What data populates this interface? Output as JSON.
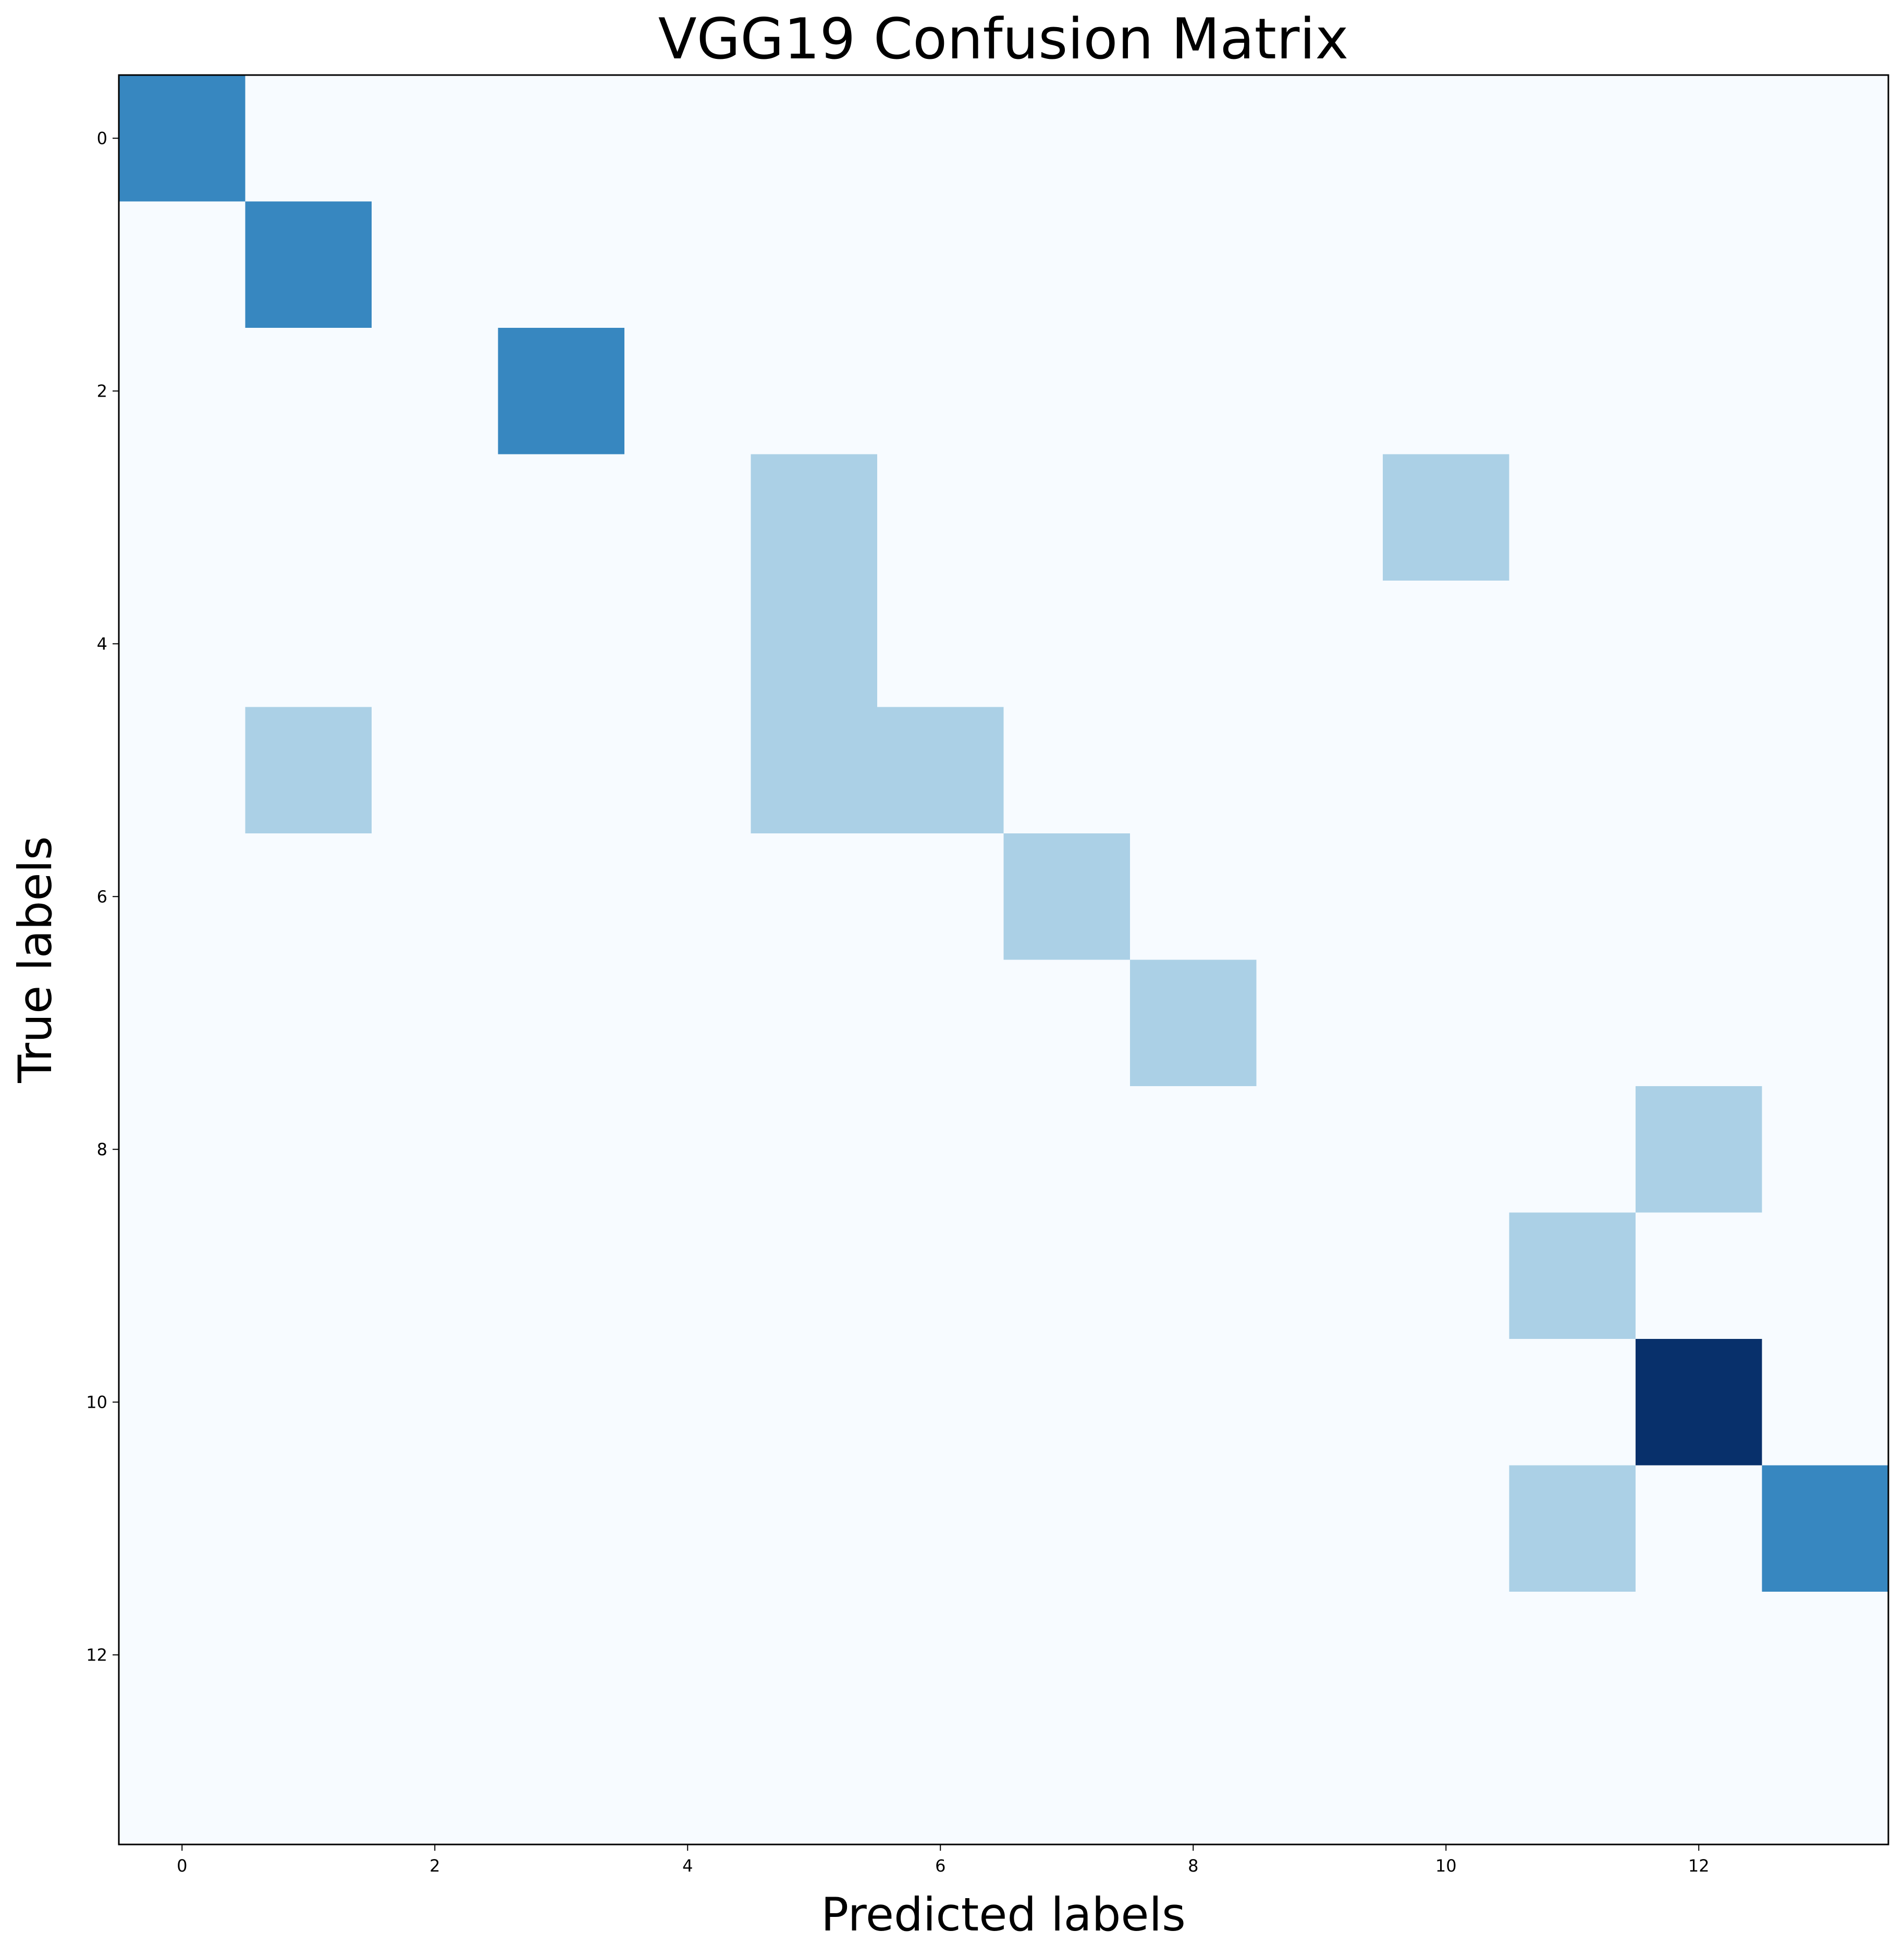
{
  "chart_data": {
    "type": "heatmap",
    "title": "VGG19 Confusion Matrix",
    "xlabel": "Predicted labels",
    "ylabel": "True labels",
    "x_ticks": [
      "0",
      "2",
      "4",
      "6",
      "8",
      "10",
      "12"
    ],
    "y_ticks": [
      "0",
      "2",
      "4",
      "6",
      "8",
      "10",
      "12"
    ],
    "size": 14,
    "colormap": "Blues",
    "vmax": 3,
    "colors": [
      "#f7fbff",
      "#abd0e6",
      "#3787c0",
      "#08306b"
    ],
    "matrix": [
      [
        2,
        0,
        0,
        0,
        0,
        0,
        0,
        0,
        0,
        0,
        0,
        0,
        0,
        0
      ],
      [
        0,
        2,
        0,
        0,
        0,
        0,
        0,
        0,
        0,
        0,
        0,
        0,
        0,
        0
      ],
      [
        0,
        0,
        0,
        2,
        0,
        0,
        0,
        0,
        0,
        0,
        0,
        0,
        0,
        0
      ],
      [
        0,
        0,
        0,
        0,
        0,
        1,
        0,
        0,
        0,
        0,
        1,
        0,
        0,
        0
      ],
      [
        0,
        0,
        0,
        0,
        0,
        1,
        0,
        0,
        0,
        0,
        0,
        0,
        0,
        0
      ],
      [
        0,
        1,
        0,
        0,
        0,
        1,
        1,
        0,
        0,
        0,
        0,
        0,
        0,
        0
      ],
      [
        0,
        0,
        0,
        0,
        0,
        0,
        0,
        1,
        0,
        0,
        0,
        0,
        0,
        0
      ],
      [
        0,
        0,
        0,
        0,
        0,
        0,
        0,
        0,
        1,
        0,
        0,
        0,
        0,
        0
      ],
      [
        0,
        0,
        0,
        0,
        0,
        0,
        0,
        0,
        0,
        0,
        0,
        0,
        1,
        0
      ],
      [
        0,
        0,
        0,
        0,
        0,
        0,
        0,
        0,
        0,
        0,
        0,
        1,
        0,
        0
      ],
      [
        0,
        0,
        0,
        0,
        0,
        0,
        0,
        0,
        0,
        0,
        0,
        0,
        3,
        0
      ],
      [
        0,
        0,
        0,
        0,
        0,
        0,
        0,
        0,
        0,
        0,
        0,
        1,
        0,
        2
      ],
      [
        0,
        0,
        0,
        0,
        0,
        0,
        0,
        0,
        0,
        0,
        0,
        0,
        0,
        0
      ],
      [
        0,
        0,
        0,
        0,
        0,
        0,
        0,
        0,
        0,
        0,
        0,
        0,
        0,
        0
      ]
    ]
  }
}
